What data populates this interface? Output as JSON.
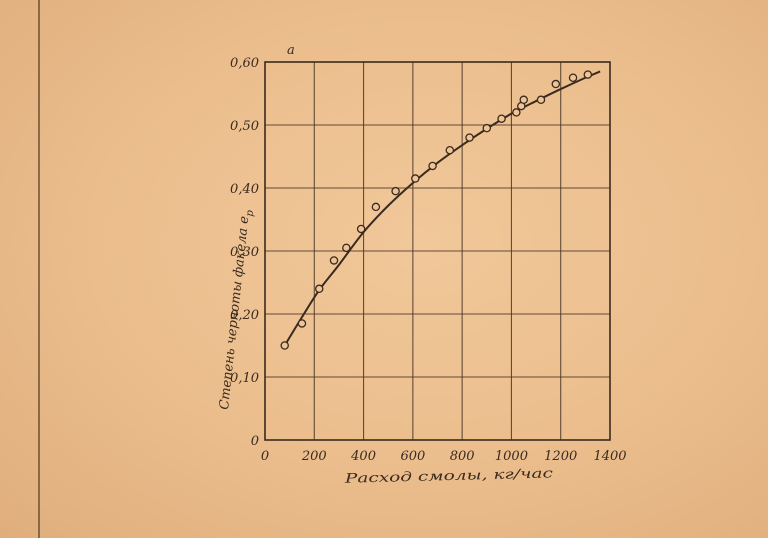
{
  "chart_data": {
    "type": "line",
    "panel_label": "a",
    "xlabel": "Расход смолы, кг/час",
    "ylabel": "Степень черноты факела e",
    "ylabel_subscript": "р",
    "xlim": [
      0,
      1400
    ],
    "ylim": [
      0,
      0.6
    ],
    "x_ticks": [
      0,
      200,
      400,
      600,
      800,
      1000,
      1200,
      1400
    ],
    "x_tick_labels": [
      "0",
      "200",
      "400",
      "600",
      "800",
      "1000",
      "1200",
      "1400"
    ],
    "y_ticks": [
      0,
      0.1,
      0.2,
      0.3,
      0.4,
      0.5,
      0.6
    ],
    "y_tick_labels": [
      "0",
      "0,10",
      "0,20",
      "0,30",
      "0,40",
      "0,50",
      "0,60"
    ],
    "grid": true,
    "series": [
      {
        "kind": "measured",
        "marker": "open-circle",
        "x": [
          80,
          150,
          220,
          280,
          330,
          390,
          450,
          530,
          610,
          680,
          750,
          830,
          900,
          960,
          1020,
          1040,
          1050,
          1120,
          1180,
          1250,
          1310
        ],
        "y": [
          0.15,
          0.185,
          0.24,
          0.285,
          0.305,
          0.335,
          0.37,
          0.395,
          0.415,
          0.435,
          0.46,
          0.48,
          0.495,
          0.51,
          0.52,
          0.53,
          0.54,
          0.54,
          0.565,
          0.575,
          0.58
        ]
      },
      {
        "kind": "fitted",
        "marker": "none",
        "x": [
          80,
          150,
          220,
          300,
          400,
          500,
          600,
          700,
          800,
          900,
          1000,
          1100,
          1200,
          1300,
          1360
        ],
        "y": [
          0.15,
          0.195,
          0.238,
          0.278,
          0.33,
          0.372,
          0.408,
          0.44,
          0.468,
          0.494,
          0.518,
          0.538,
          0.557,
          0.575,
          0.585
        ]
      }
    ],
    "colors": {
      "ink": "#3a2a1f",
      "grid": "#4a3628"
    }
  }
}
